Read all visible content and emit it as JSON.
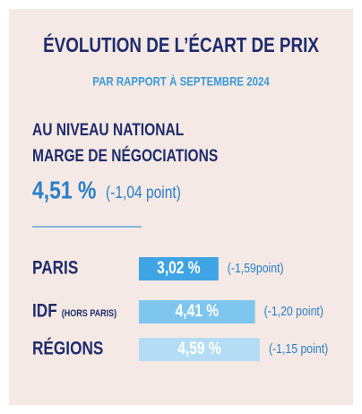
{
  "chart_data": {
    "type": "bar",
    "orientation": "horizontal",
    "title": "ÉVOLUTION DE L’ÉCART DE PRIX",
    "subtitle": "PAR RAPPORT À SEPTEMBRE 2024",
    "national": {
      "heading": [
        "AU NIVEAU NATIONAL",
        "MARGE DE NÉGOCIATIONS"
      ],
      "value": 4.51,
      "value_label": "4,51 %",
      "change_label": "(-1,04 point)"
    },
    "categories": [
      "PARIS",
      "IDF",
      "RÉGIONS"
    ],
    "category_notes": [
      null,
      "(HORS PARIS)",
      null
    ],
    "values": [
      3.02,
      4.41,
      4.59
    ],
    "value_labels": [
      "3,02 %",
      "4,41 %",
      "4,59 %"
    ],
    "annotations": [
      "(-1,59point)",
      "(-1,20 point)",
      "(-1,15 point)"
    ],
    "colors": [
      "#3ea4e4",
      "#7fc6ef",
      "#b4ddf5"
    ]
  }
}
